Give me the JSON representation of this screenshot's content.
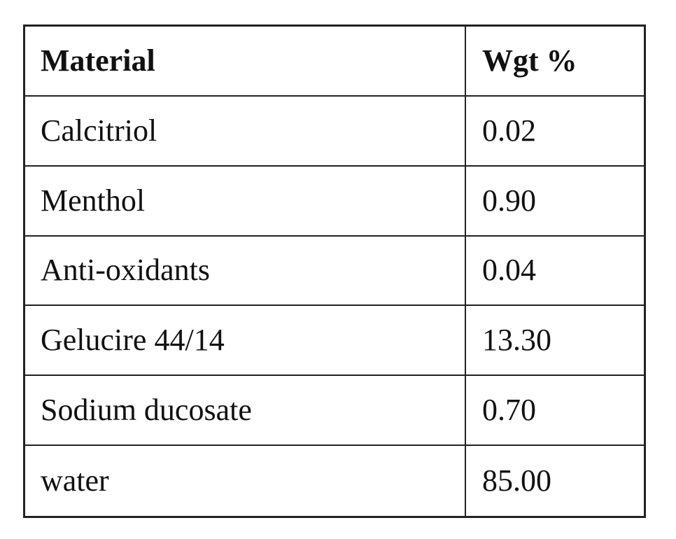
{
  "table": {
    "headers": [
      "Material",
      "Wgt %"
    ],
    "rows": [
      [
        "Calcitriol",
        "0.02"
      ],
      [
        "Menthol",
        "0.90"
      ],
      [
        "Anti-oxidants",
        "0.04"
      ],
      [
        "Gelucire 44/14",
        "13.30"
      ],
      [
        "Sodium ducosate",
        "0.70"
      ],
      [
        "water",
        "85.00"
      ]
    ]
  }
}
